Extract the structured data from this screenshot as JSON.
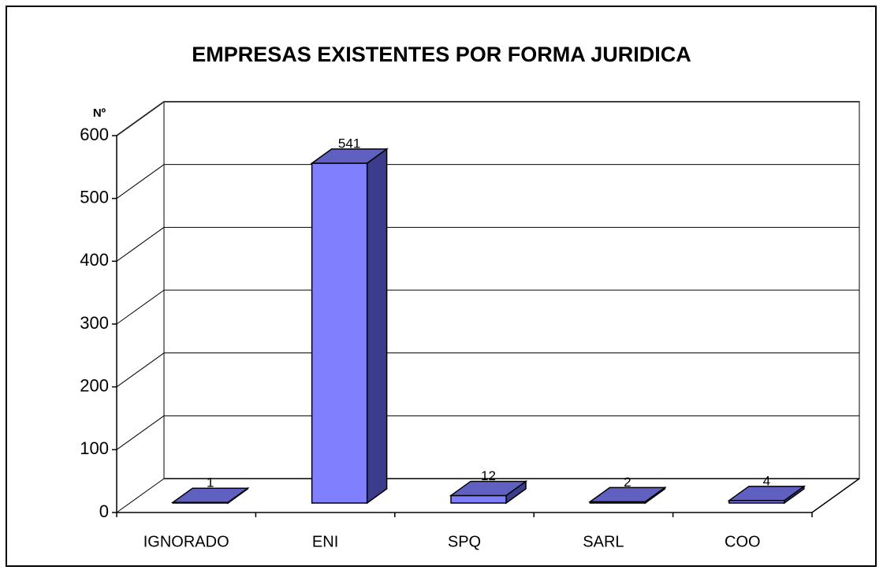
{
  "chart_data": {
    "type": "bar3d",
    "title": "EMPRESAS EXISTENTES POR FORMA JURIDICA",
    "y_label": "Nº",
    "categories": [
      "IGNORADO",
      "ENI",
      "SPQ",
      "SARL",
      "COO"
    ],
    "values": [
      1,
      541,
      12,
      2,
      4
    ],
    "color": "#8080ff",
    "ylim": [
      0,
      600
    ],
    "yticks": [
      0,
      100,
      200,
      300,
      400,
      500,
      600
    ],
    "grid": true
  }
}
